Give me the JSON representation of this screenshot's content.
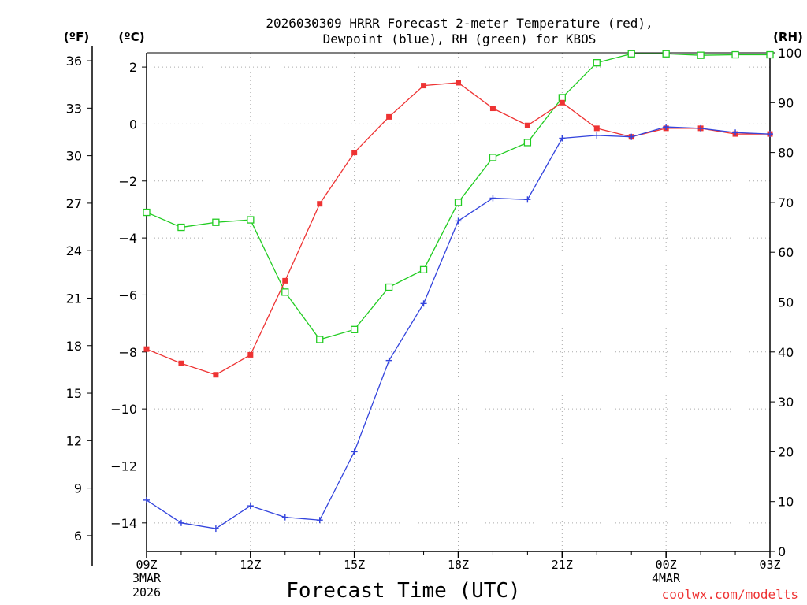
{
  "header": {
    "title_line1": "2026030309 HRRR Forecast 2-meter Temperature (red),",
    "title_line2": "Dewpoint (blue), RH (green) for KBOS",
    "unit_f": "(ºF)",
    "unit_c": "(ºC)",
    "unit_rh": "(RH)"
  },
  "footer": {
    "xlabel": "Forecast Time (UTC)",
    "credit": "coolwx.com/modelts",
    "date_start_line1": "3MAR",
    "date_start_line2": "2026",
    "date_mid": "4MAR"
  },
  "colors": {
    "temperature": "#ee3333",
    "dewpoint": "#3344dd",
    "rh": "#22cc22",
    "grid": "#aaaaaa",
    "credit": "#ee3333"
  },
  "chart_data": {
    "type": "line",
    "title": "2026030309 HRRR Forecast 2-meter Temperature (red), Dewpoint (blue), RH (green) for KBOS",
    "xlabel": "Forecast Time (UTC)",
    "x_hours": [
      9,
      10,
      11,
      12,
      13,
      14,
      15,
      16,
      17,
      18,
      19,
      20,
      21,
      22,
      23,
      24,
      25,
      26,
      27
    ],
    "xlim": [
      9,
      27
    ],
    "x_ticks": [
      {
        "hour": 9,
        "label": "09Z"
      },
      {
        "hour": 12,
        "label": "12Z"
      },
      {
        "hour": 15,
        "label": "15Z"
      },
      {
        "hour": 18,
        "label": "18Z"
      },
      {
        "hour": 21,
        "label": "21Z"
      },
      {
        "hour": 24,
        "label": "00Z"
      },
      {
        "hour": 27,
        "label": "03Z"
      }
    ],
    "ylim_c": [
      -15.0,
      2.5
    ],
    "y_c_ticks": [
      "2",
      "0",
      "−2",
      "−4",
      "−6",
      "−8",
      "−10",
      "−12",
      "−14"
    ],
    "y_f_ticks": [
      "36",
      "33",
      "30",
      "27",
      "24",
      "21",
      "18",
      "15",
      "12",
      "9",
      "6"
    ],
    "ylim_rh": [
      0,
      100
    ],
    "y_rh_ticks": [
      "100",
      "90",
      "80",
      "70",
      "60",
      "50",
      "40",
      "30",
      "20",
      "10",
      "0"
    ],
    "series": [
      {
        "name": "2-meter Temperature (°C)",
        "axis": "c",
        "marker": "filled-square",
        "values": [
          -7.9,
          -8.4,
          -8.8,
          -8.1,
          -5.5,
          -2.8,
          -1.0,
          0.25,
          1.35,
          1.45,
          0.55,
          -0.05,
          0.75,
          -0.15,
          -0.45,
          -0.15,
          -0.15,
          -0.35,
          -0.35
        ]
      },
      {
        "name": "Dewpoint (°C)",
        "axis": "c",
        "marker": "plus",
        "values": [
          -13.2,
          -14.0,
          -14.2,
          -13.4,
          -13.8,
          -13.9,
          -11.5,
          -8.3,
          -6.3,
          -3.4,
          -2.6,
          -2.65,
          -0.5,
          -0.4,
          -0.45,
          -0.1,
          -0.15,
          -0.3,
          -0.35
        ]
      },
      {
        "name": "RH (%)",
        "axis": "rh",
        "marker": "open-square",
        "values": [
          68,
          65,
          66,
          66.5,
          52,
          42.5,
          44.5,
          53,
          56.5,
          70,
          79,
          82,
          91,
          98,
          99.8,
          99.8,
          99.5,
          99.6,
          99.6
        ]
      }
    ]
  }
}
